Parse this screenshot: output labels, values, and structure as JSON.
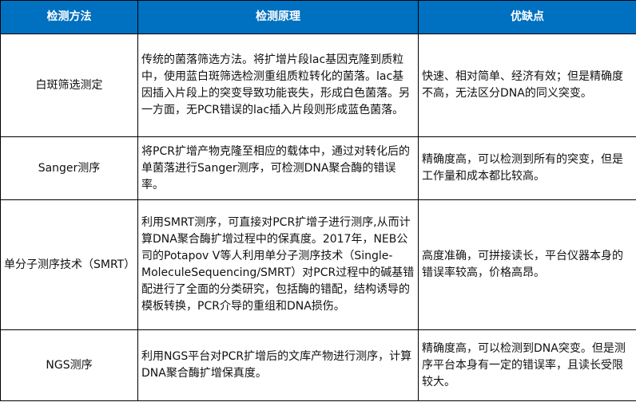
{
  "header": {
    "col1": "检测方法",
    "col2": "检测原理",
    "col3": "优缺点",
    "bg_color": "#0070C0"
  },
  "rows": [
    {
      "method": "白斑筛选测定",
      "principle": "传统的菌落筛选方法。将扩增片段lac基因克隆到质粒中，使用蓝白斑筛选检测重组质粒转化的菌落。lac基因插入片段上的突变导致功能丧失，形成白色菌落。另一方面，无PCR错误的lac插入片段则形成蓝色菌落。",
      "pros_cons": "快速、相对简单、经济有效；但是精确度不高，无法区分DNA的同义突变。"
    },
    {
      "method": "Sanger测序",
      "principle": "将PCR扩增产物克隆至相应的载体中，通过对转化后的单菌落进行Sanger测序，可检测DNA聚合酶的错误率。",
      "pros_cons": "精确度高，可以检测到所有的突变，但是工作量和成本都比较高。"
    },
    {
      "method": "单分子测序技术（SMRT）",
      "principle": "利用SMRT测序，可直接对PCR扩增子进行测序,从而计算DNA聚合酶扩增过程中的保真度。2017年，NEB公司的Potapov V等人利用单分子测序技术（Single-MoleculeSequencing/SMRT）对PCR过程中的碱基错配进行了全面的分类研究，包括酶的错配，结构诱导的模板转换，PCR介导的重组和DNA损伤。",
      "pros_cons": "高度准确，可拼接读长，平台仪器本身的错误率较高，价格高昂。"
    },
    {
      "method": "NGS测序",
      "principle": "利用NGS平台对PCR扩增后的文库产物进行测序，计算DNA聚合酶扩增保真度。",
      "pros_cons": "精确度高，可以检测到DNA突变。但是测序平台本身有一定的错误率，且读长受限较大。"
    }
  ]
}
